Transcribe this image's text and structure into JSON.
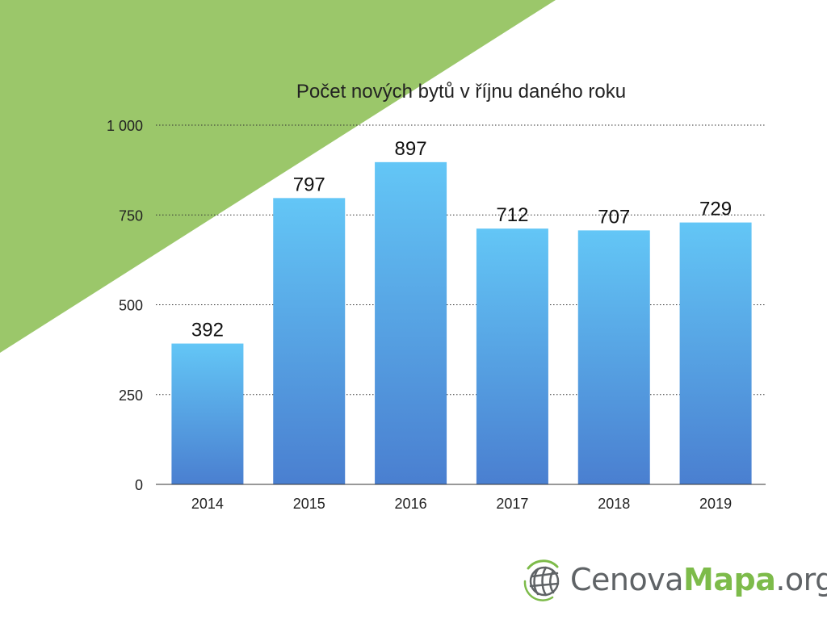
{
  "colors": {
    "background": "#ffffff",
    "accent_triangle": "#9bc76a",
    "bar_top": "#63c6f6",
    "bar_bottom": "#4a7fd0",
    "gridline": "#333333",
    "logo_green": "#7dbb4a",
    "logo_gray": "#5f6366"
  },
  "chart_data": {
    "type": "bar",
    "title": "Počet nových bytů v říjnu daného roku",
    "categories": [
      "2014",
      "2015",
      "2016",
      "2017",
      "2018",
      "2019"
    ],
    "values": [
      392,
      797,
      897,
      712,
      707,
      729
    ],
    "data_labels": [
      "392",
      "797",
      "897",
      "712",
      "707",
      "729"
    ],
    "ylim": [
      0,
      1000
    ],
    "yticks": [
      0,
      250,
      500,
      750,
      1000
    ],
    "ytick_labels": [
      "0",
      "250",
      "500",
      "750",
      "1 000"
    ],
    "grid": "horizontal-dotted",
    "legend": "none",
    "xlabel": "",
    "ylabel": ""
  },
  "logo": {
    "icon": "globe-icon",
    "part1": "Cenova",
    "part2": "Mapa",
    "part3": ".org"
  }
}
